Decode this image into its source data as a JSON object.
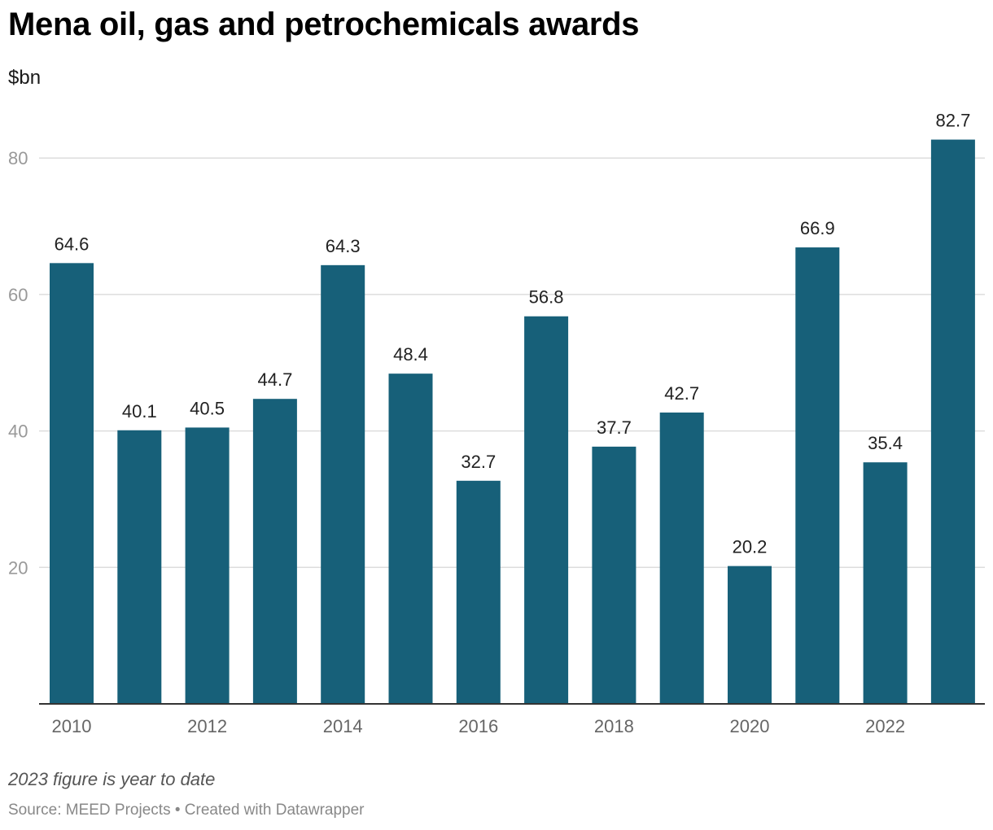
{
  "title": "Mena oil, gas and petrochemicals awards",
  "subtitle": "$bn",
  "note": "2023 figure is year to date",
  "footer": {
    "source": "Source: MEED Projects",
    "separator": "•",
    "credit": "Created with Datawrapper"
  },
  "colors": {
    "bar": "#176079",
    "grid": "#dddddd",
    "baseline": "#333333",
    "axis_text": "#999999",
    "x_axis_text": "#666666",
    "value_label": "#222222"
  },
  "chart_data": {
    "type": "bar",
    "categories": [
      "2010",
      "2011",
      "2012",
      "2013",
      "2014",
      "2015",
      "2016",
      "2017",
      "2018",
      "2019",
      "2020",
      "2021",
      "2022",
      "2023"
    ],
    "values": [
      64.6,
      40.1,
      40.5,
      44.7,
      64.3,
      48.4,
      32.7,
      56.8,
      37.7,
      42.7,
      20.2,
      66.9,
      35.4,
      82.7
    ],
    "x_tick_labels": [
      "2010",
      "2012",
      "2014",
      "2016",
      "2018",
      "2020",
      "2022"
    ],
    "y_ticks": [
      20,
      40,
      60,
      80
    ],
    "ylim": [
      0,
      92
    ],
    "xlabel": "",
    "ylabel": "$bn",
    "grid": true,
    "data_labels": true
  }
}
